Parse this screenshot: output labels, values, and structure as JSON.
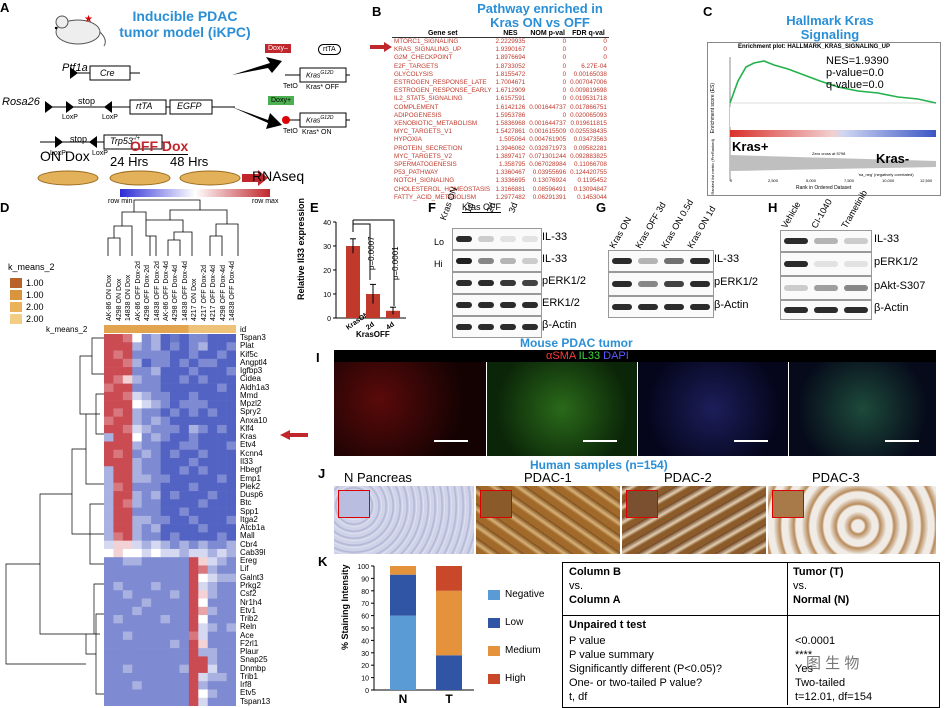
{
  "panels": {
    "A": "A",
    "B": "B",
    "C": "C",
    "D": "D",
    "E": "E",
    "F": "F",
    "G": "G",
    "H": "H",
    "I": "I",
    "J": "J",
    "K": "K"
  },
  "a": {
    "title1": "Inducible PDAC",
    "title2": "tumor model (iKPC)",
    "ptf1a": "Ptf1a",
    "cre": "Cre",
    "rosa26": "Rosa26",
    "stop": "stop",
    "rtta": "rtTA",
    "egfp": "EGFP",
    "loxp": "LoxP",
    "trp53": "Trp53",
    "trp53_sup": "-/+",
    "doxy_minus": "Doxy–",
    "doxy_plus": "Doxy+",
    "teto": "TetO",
    "kras": "Kras",
    "kras_sup": "G12D",
    "kras_off": "Kras* OFF",
    "kras_on": "Kras* ON",
    "on_dox": "ON Dox",
    "off_dox": "OFF Dox",
    "h24": "24 Hrs",
    "h48": "48 Hrs",
    "rnaseq": "RNAseq",
    "row_min": "row min",
    "row_max": "row max"
  },
  "b": {
    "title1": "Pathway enriched in",
    "title2": "Kras ON vs OFF",
    "headers": [
      "Gene set",
      "NES",
      "NOM p-val",
      "FDR q-val"
    ],
    "rows": [
      [
        "MTORC1_SIGNALING",
        "2.2229935",
        "0",
        "0"
      ],
      [
        "KRAS_SIGNALING_UP",
        "1.9390167",
        "0",
        "0"
      ],
      [
        "G2M_CHECKPOINT",
        "1.8976694",
        "0",
        "0"
      ],
      [
        "E2F_TARGETS",
        "1.8733052",
        "0",
        "6.27E-04"
      ],
      [
        "GLYCOLYSIS",
        "1.8155472",
        "0",
        "0.00165038"
      ],
      [
        "ESTROGEN_RESPONSE_LATE",
        "1.7004671",
        "0",
        "0.007047006"
      ],
      [
        "ESTROGEN_RESPONSE_EARLY",
        "1.6712909",
        "0",
        "0.009819698"
      ],
      [
        "IL2_STAT5_SIGNALING",
        "1.6157591",
        "0",
        "0.019531718"
      ],
      [
        "COMPLEMENT",
        "1.6142126",
        "0.001644737",
        "0.017866751"
      ],
      [
        "ADIPOGENESIS",
        "1.5953786",
        "0",
        "0.020065093"
      ],
      [
        "XENOBIOTIC_METABOLISM",
        "1.5836968",
        "0.001644737",
        "0.019611815"
      ],
      [
        "MYC_TARGETS_V1",
        "1.5427861",
        "0.001615509",
        "0.025538435"
      ],
      [
        "HYPOXIA",
        "1.505064",
        "0.004761905",
        "0.03473563"
      ],
      [
        "PROTEIN_SECRETION",
        "1.3946062",
        "0.032871973",
        "0.09582281"
      ],
      [
        "MYC_TARGETS_V2",
        "1.3897417",
        "0.071301244",
        "0.092883825"
      ],
      [
        "SPERMATOGENESIS",
        "1.358795",
        "0.067028984",
        "0.11066708"
      ],
      [
        "P53_PATHWAY",
        "1.3360467",
        "0.03955696",
        "0.124420755"
      ],
      [
        "NOTCH_SIGNALING",
        "1.3336695",
        "0.13076924",
        "0.1195452"
      ],
      [
        "CHOLESTEROL_HOMEOSTASIS",
        "1.3166881",
        "0.08596491",
        "0.13094847"
      ],
      [
        "FATTY_ACID_METABOLISM",
        "1.2977482",
        "0.06291391",
        "0.1453044"
      ]
    ]
  },
  "c": {
    "title1": "Hallmark Kras",
    "title2": "Signaling",
    "plot_title": "Enrichment plot: HALLMARK_KRAS_SIGNALING_UP",
    "nes": "NES=1.9390",
    "pval": "p-value=0.0",
    "qval": "q-value=0.0",
    "kras_plus": "Kras+",
    "kras_minus": "Kras-",
    "xlabel": "Rank in Ordered Dataset",
    "ylabel_top": "Enrichment score (ES)",
    "ylabel_bottom": "Ranked list metric (PreRanked)",
    "ticks": [
      "0",
      "2,500",
      "5,000",
      "7,500",
      "10,000",
      "12,500"
    ],
    "zero_cross": "Zero cross at 5798",
    "neg_corr": "'na_neg' (negatively correlated)",
    "colors": {
      "curve": "#22b14c",
      "bar_pos": "#d9312b",
      "bar_neg": "#3a56c4"
    }
  },
  "d": {
    "legend_title": "k_means_2",
    "legend": [
      "1.00",
      "1.00",
      "2.00",
      "2.00"
    ],
    "legend_colors": [
      "#b8632a",
      "#d9943e",
      "#e9b25b",
      "#f3cd84"
    ],
    "row_label": "k_means_2",
    "id_label": "id",
    "columns": [
      "AK-86 ON Dox",
      "4298 ON Dox",
      "14838 ON Dox",
      "AK-86 OFF Dox-2d",
      "4298 OFF Dox-2d",
      "14838 OFF Dox-2d",
      "AK-86 OFF Dox-4d",
      "4298 OFF Dox-4d",
      "14838 OFF Dox-4d",
      "4217 ON Dox",
      "4217 OFF Dox-2d",
      "4217 OFF Dox-4d",
      "4298 OFF Dox-4d",
      "14838 OFF Dox-4d"
    ],
    "genes": [
      "Tspan3",
      "Plat",
      "Kif5c",
      "Angptl4",
      "Igfbp3",
      "Cidea",
      "Aldh1a3",
      "Mmd",
      "Mpzl2",
      "Spry2",
      "Anxa10",
      "Klf4",
      "Kras",
      "Etv4",
      "Kcnn4",
      "Il33",
      "Hbegf",
      "Emp1",
      "Plek2",
      "Dusp6",
      "Btc",
      "Spp1",
      "Itga2",
      "Atcb1a",
      "Mall",
      "Cbr4",
      "Cab39l",
      "Ereg",
      "Lif",
      "Galnt3",
      "Prkg2",
      "Csf2",
      "Nr1h4",
      "Etv1",
      "Trib2",
      "Reln",
      "Ace",
      "F2rl1",
      "Plaur",
      "Snap25",
      "Dnmbp",
      "Trib1",
      "Irf8",
      "Etv5",
      "Tspan13"
    ],
    "heatmap": [
      [
        0.9,
        0.9,
        0.8,
        0.5,
        0.2,
        0.3,
        0.1,
        0.15,
        0.1,
        0.2,
        0.2,
        0.1,
        0.1,
        0.1
      ],
      [
        0.9,
        0.9,
        0.9,
        0.3,
        0.2,
        0.3,
        0.1,
        0.2,
        0.1,
        0.2,
        0.3,
        0.1,
        0.1,
        0.2
      ],
      [
        0.9,
        0.8,
        0.9,
        0.2,
        0.2,
        0.2,
        0.2,
        0.1,
        0.1,
        0.2,
        0.1,
        0.1,
        0.2,
        0.1
      ],
      [
        0.9,
        0.9,
        0.8,
        0.3,
        0.1,
        0.2,
        0.2,
        0.1,
        0.2,
        0.1,
        0.2,
        0.2,
        0.1,
        0.1
      ],
      [
        0.9,
        0.9,
        0.9,
        0.2,
        0.2,
        0.3,
        0.1,
        0.1,
        0.1,
        0.2,
        0.1,
        0.1,
        0.1,
        0.2
      ],
      [
        0.9,
        0.8,
        0.6,
        0.3,
        0.2,
        0.2,
        0.1,
        0.1,
        0.2,
        0.1,
        0.2,
        0.1,
        0.1,
        0.1
      ],
      [
        0.8,
        0.9,
        0.9,
        0.2,
        0.2,
        0.2,
        0.1,
        0.1,
        0.1,
        0.1,
        0.1,
        0.1,
        0.2,
        0.1
      ],
      [
        0.9,
        0.9,
        0.8,
        0.4,
        0.3,
        0.2,
        0.2,
        0.1,
        0.1,
        0.2,
        0.1,
        0.1,
        0.1,
        0.1
      ],
      [
        0.9,
        0.9,
        0.9,
        0.5,
        0.4,
        0.3,
        0.2,
        0.1,
        0.2,
        0.2,
        0.2,
        0.1,
        0.1,
        0.1
      ],
      [
        0.9,
        0.8,
        0.9,
        0.3,
        0.2,
        0.2,
        0.1,
        0.2,
        0.1,
        0.2,
        0.1,
        0.2,
        0.1,
        0.1
      ],
      [
        0.8,
        0.9,
        0.9,
        0.3,
        0.2,
        0.3,
        0.2,
        0.1,
        0.1,
        0.1,
        0.1,
        0.1,
        0.1,
        0.1
      ],
      [
        0.9,
        0.9,
        0.8,
        0.4,
        0.3,
        0.2,
        0.2,
        0.2,
        0.1,
        0.3,
        0.2,
        0.1,
        0.2,
        0.1
      ],
      [
        0.3,
        0.9,
        0.9,
        0.5,
        0.2,
        0.3,
        0.2,
        0.1,
        0.1,
        0.2,
        0.1,
        0.1,
        0.1,
        0.1
      ],
      [
        0.9,
        0.9,
        0.9,
        0.3,
        0.2,
        0.2,
        0.1,
        0.1,
        0.2,
        0.2,
        0.1,
        0.1,
        0.1,
        0.2
      ],
      [
        0.9,
        0.8,
        0.9,
        0.2,
        0.3,
        0.2,
        0.1,
        0.2,
        0.1,
        0.1,
        0.2,
        0.1,
        0.1,
        0.1
      ],
      [
        0.9,
        0.9,
        0.9,
        0.3,
        0.2,
        0.2,
        0.1,
        0.1,
        0.1,
        0.2,
        0.1,
        0.1,
        0.1,
        0.1
      ],
      [
        0.3,
        0.9,
        0.9,
        0.3,
        0.2,
        0.2,
        0.1,
        0.1,
        0.2,
        0.1,
        0.2,
        0.1,
        0.1,
        0.1
      ],
      [
        0.3,
        0.9,
        0.9,
        0.3,
        0.3,
        0.2,
        0.2,
        0.1,
        0.1,
        0.1,
        0.1,
        0.1,
        0.2,
        0.1
      ],
      [
        0.3,
        0.8,
        0.9,
        0.2,
        0.2,
        0.2,
        0.1,
        0.1,
        0.1,
        0.2,
        0.1,
        0.1,
        0.1,
        0.1
      ],
      [
        0.3,
        0.9,
        0.9,
        0.3,
        0.2,
        0.3,
        0.1,
        0.2,
        0.1,
        0.1,
        0.1,
        0.2,
        0.1,
        0.1
      ],
      [
        0.3,
        0.9,
        0.8,
        0.3,
        0.2,
        0.2,
        0.1,
        0.1,
        0.1,
        0.1,
        0.2,
        0.1,
        0.1,
        0.1
      ],
      [
        0.3,
        0.9,
        0.9,
        0.2,
        0.2,
        0.2,
        0.1,
        0.1,
        0.2,
        0.1,
        0.1,
        0.1,
        0.1,
        0.1
      ],
      [
        0.3,
        0.9,
        0.9,
        0.3,
        0.3,
        0.2,
        0.2,
        0.1,
        0.1,
        0.2,
        0.1,
        0.1,
        0.1,
        0.2
      ],
      [
        0.3,
        0.9,
        0.9,
        0.3,
        0.2,
        0.3,
        0.1,
        0.1,
        0.1,
        0.1,
        0.2,
        0.1,
        0.1,
        0.1
      ],
      [
        0.3,
        0.8,
        0.9,
        0.3,
        0.2,
        0.2,
        0.1,
        0.2,
        0.1,
        0.1,
        0.1,
        0.1,
        0.2,
        0.1
      ],
      [
        0.4,
        0.6,
        0.6,
        0.4,
        0.3,
        0.4,
        0.3,
        0.2,
        0.3,
        0.2,
        0.3,
        0.2,
        0.2,
        0.3
      ],
      [
        0.5,
        0.6,
        0.5,
        0.5,
        0.4,
        0.5,
        0.4,
        0.4,
        0.3,
        0.4,
        0.4,
        0.3,
        0.4,
        0.3
      ],
      [
        0.2,
        0.2,
        0.3,
        0.3,
        0.2,
        0.2,
        0.2,
        0.2,
        0.2,
        0.9,
        0.6,
        0.4,
        0.3,
        0.2
      ],
      [
        0.2,
        0.2,
        0.2,
        0.2,
        0.2,
        0.2,
        0.2,
        0.2,
        0.2,
        0.9,
        0.8,
        0.3,
        0.2,
        0.2
      ],
      [
        0.2,
        0.2,
        0.2,
        0.2,
        0.2,
        0.2,
        0.2,
        0.2,
        0.2,
        0.9,
        0.5,
        0.4,
        0.3,
        0.3
      ],
      [
        0.2,
        0.3,
        0.2,
        0.2,
        0.2,
        0.3,
        0.2,
        0.2,
        0.2,
        0.9,
        0.4,
        0.3,
        0.2,
        0.2
      ],
      [
        0.2,
        0.2,
        0.3,
        0.2,
        0.2,
        0.2,
        0.2,
        0.3,
        0.2,
        0.9,
        0.6,
        0.3,
        0.2,
        0.2
      ],
      [
        0.2,
        0.2,
        0.2,
        0.2,
        0.3,
        0.2,
        0.2,
        0.2,
        0.2,
        0.9,
        0.5,
        0.2,
        0.2,
        0.2
      ],
      [
        0.2,
        0.2,
        0.2,
        0.3,
        0.2,
        0.2,
        0.2,
        0.2,
        0.2,
        0.9,
        0.7,
        0.3,
        0.2,
        0.2
      ],
      [
        0.2,
        0.3,
        0.2,
        0.2,
        0.2,
        0.2,
        0.3,
        0.2,
        0.2,
        0.9,
        0.5,
        0.2,
        0.2,
        0.2
      ],
      [
        0.2,
        0.2,
        0.2,
        0.2,
        0.2,
        0.2,
        0.2,
        0.2,
        0.2,
        0.9,
        0.4,
        0.3,
        0.2,
        0.3
      ],
      [
        0.2,
        0.2,
        0.3,
        0.2,
        0.2,
        0.2,
        0.2,
        0.2,
        0.2,
        0.8,
        0.4,
        0.2,
        0.2,
        0.2
      ],
      [
        0.2,
        0.2,
        0.2,
        0.2,
        0.2,
        0.2,
        0.2,
        0.3,
        0.2,
        0.9,
        0.6,
        0.2,
        0.2,
        0.2
      ],
      [
        0.2,
        0.2,
        0.2,
        0.2,
        0.2,
        0.2,
        0.2,
        0.2,
        0.2,
        0.9,
        0.3,
        0.3,
        0.2,
        0.2
      ],
      [
        0.2,
        0.2,
        0.2,
        0.2,
        0.2,
        0.2,
        0.2,
        0.2,
        0.2,
        0.9,
        0.9,
        0.3,
        0.2,
        0.2
      ],
      [
        0.2,
        0.2,
        0.3,
        0.2,
        0.2,
        0.2,
        0.2,
        0.2,
        0.3,
        0.9,
        0.9,
        0.4,
        0.2,
        0.2
      ],
      [
        0.2,
        0.2,
        0.2,
        0.2,
        0.2,
        0.2,
        0.2,
        0.2,
        0.2,
        0.9,
        0.4,
        0.3,
        0.3,
        0.2
      ],
      [
        0.2,
        0.2,
        0.2,
        0.3,
        0.2,
        0.2,
        0.2,
        0.2,
        0.2,
        0.9,
        0.3,
        0.2,
        0.2,
        0.2
      ],
      [
        0.2,
        0.2,
        0.2,
        0.2,
        0.2,
        0.2,
        0.2,
        0.2,
        0.2,
        0.9,
        0.5,
        0.3,
        0.2,
        0.2
      ],
      [
        0.2,
        0.2,
        0.2,
        0.2,
        0.2,
        0.2,
        0.2,
        0.2,
        0.2,
        0.9,
        0.4,
        0.2,
        0.2,
        0.2
      ]
    ]
  },
  "e": {
    "ylabel": "Relative Il33 expression",
    "p1": "p=0.0007",
    "p2": "p=0.0001",
    "xgroup": "KrasOFF",
    "chart_data": {
      "type": "bar",
      "categories": [
        "KrasON",
        "2d",
        "4d"
      ],
      "values": [
        30,
        10,
        3
      ],
      "errors": [
        3,
        4,
        1.5
      ],
      "ylim": [
        0,
        40
      ],
      "yticks": [
        "0",
        "10",
        "20",
        "30",
        "40"
      ],
      "color": "#c0392b"
    }
  },
  "f": {
    "header_on": "Kras ON",
    "header_off": "Kras OFF",
    "lanes": [
      "1d",
      "2d",
      "3d"
    ],
    "row_lo": "Lo",
    "row_hi": "Hi",
    "labels": [
      "IL-33",
      "IL-33",
      "pERK1/2",
      "ERK1/2",
      "β-Actin"
    ]
  },
  "g": {
    "lanes": [
      "Kras ON",
      "Kras OFF 3d",
      "Kras ON 0.5d",
      "Kras ON 1d"
    ],
    "labels": [
      "IL-33",
      "pERK1/2",
      "β-Actin"
    ]
  },
  "h": {
    "lanes": [
      "Vehicle",
      "CI-1040",
      "Trametinib"
    ],
    "labels": [
      "IL-33",
      "pERK1/2",
      "pAkt-S307",
      "β-Actin"
    ]
  },
  "i": {
    "title": "Mouse PDAC tumor",
    "stain_sma": "αSMA",
    "stain_il33": "IL33",
    "stain_dapi": "DAPI"
  },
  "j": {
    "title": "Human samples (n=154)",
    "labels": [
      "N Pancreas",
      "PDAC-1",
      "PDAC-2",
      "PDAC-3"
    ]
  },
  "k": {
    "ylabel": "% Staining Intensity",
    "legend": [
      "Negative",
      "Low",
      "Medium",
      "High"
    ],
    "colors": [
      "#5b9bd5",
      "#2f55a4",
      "#e4923c",
      "#c9482a"
    ],
    "chart_data": {
      "type": "bar",
      "stacked": true,
      "categories": [
        "N",
        "T"
      ],
      "series": [
        {
          "name": "Negative",
          "values": [
            60,
            0
          ]
        },
        {
          "name": "Low",
          "values": [
            33,
            28
          ]
        },
        {
          "name": "Medium",
          "values": [
            7,
            52
          ]
        },
        {
          "name": "High",
          "values": [
            0,
            20
          ]
        }
      ],
      "ylim": [
        0,
        100
      ],
      "yticks": [
        "0",
        "10",
        "20",
        "30",
        "40",
        "50",
        "60",
        "70",
        "80",
        "90",
        "100"
      ]
    },
    "table": {
      "col_b": "Column B",
      "vs1": "vs.",
      "col_a": "Column A",
      "tumor": "Tumor (T)",
      "vs2": "vs.",
      "normal": "Normal (N)",
      "test": "Unpaired t test",
      "rows": [
        [
          "P value",
          "<0.0001"
        ],
        [
          "P value summary",
          "****"
        ],
        [
          "Significantly different (P<0.05)?",
          "Yes"
        ],
        [
          "One- or two-tailed P value?",
          "Two-tailed"
        ],
        [
          "t, df",
          "t=12.01, df=154"
        ]
      ]
    },
    "watermark": "图 生 物"
  }
}
